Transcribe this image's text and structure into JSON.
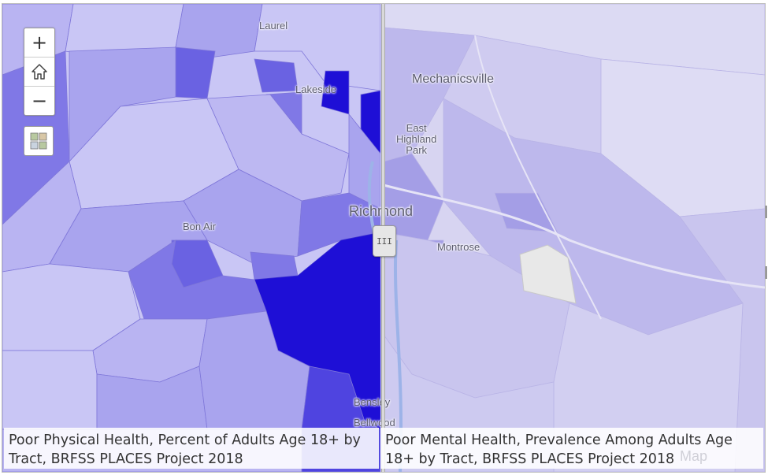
{
  "left_panel": {
    "caption": "Poor Physical Health, Percent of Adults Age 18+ by Tract, BRFSS PLACES Project 2018"
  },
  "right_panel": {
    "caption": "Poor Mental Health, Prevalence Among Adults Age 18+ by Tract, BRFSS PLACES Project 2018"
  },
  "place_labels": {
    "laurel": "Laurel",
    "lakeside": "Lakeside",
    "mechanicsville": "Mechanicsville",
    "east_highland_park": "East\nHighland\nPark",
    "richmond": "Richmond",
    "bon_air": "Bon Air",
    "montrose": "Montrose",
    "bensley": "Bensley",
    "bellwood": "Bellwood"
  },
  "controls": {
    "zoom_in": "+",
    "home": "home",
    "zoom_out": "−",
    "swipe_handle": "III"
  },
  "attribution": "Map",
  "colors": {
    "lightest": "#c9c6f5",
    "light": "#a9a4ee",
    "medium": "#8078e6",
    "dark": "#4f44e0",
    "darkest": "#1e0fd6",
    "right_bg": "#d7d4f1",
    "right_mid": "#bdb8ec",
    "right_dark": "#a49ee6",
    "highlight": "#e8e8e8"
  }
}
